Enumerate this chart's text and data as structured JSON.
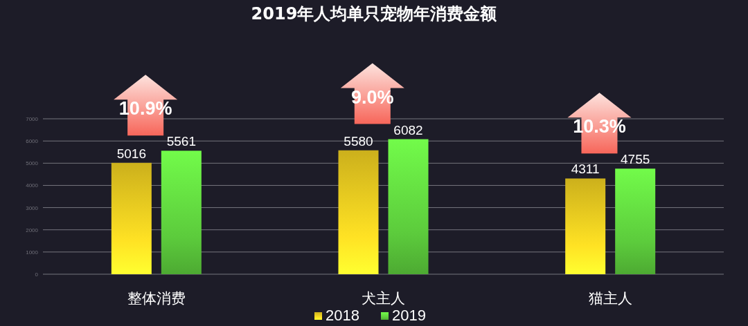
{
  "chart_data": {
    "type": "bar",
    "title": "2019年人均单只宠物年消费金额",
    "categories": [
      "整体消费",
      "犬主人",
      "猫主人"
    ],
    "series": [
      {
        "name": "2018",
        "color": "#e3c41f",
        "values": [
          5016,
          5580,
          4311
        ]
      },
      {
        "name": "2019",
        "color": "#5ccb3c",
        "values": [
          5561,
          6082,
          4755
        ]
      }
    ],
    "ylim": [
      0,
      7000
    ],
    "yticks": [
      0,
      1000,
      2000,
      3000,
      4000,
      5000,
      6000,
      7000
    ],
    "grid": "y",
    "legend": "bottom",
    "data_labels": true,
    "annotations": [
      "10.9%",
      "9.0%",
      "10.3%"
    ]
  }
}
